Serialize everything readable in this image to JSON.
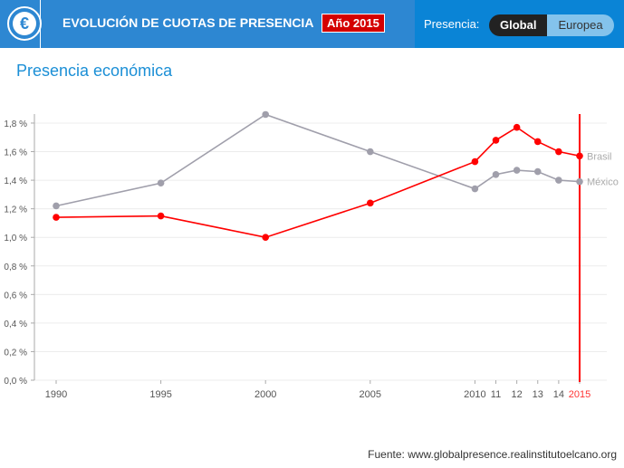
{
  "header": {
    "title": "EVOLUCIÓN DE CUOTAS DE PRESENCIA",
    "year_badge": "Año 2015",
    "logo_symbol": "€",
    "presence_label": "Presencia:",
    "toggle": {
      "global": "Global",
      "europea": "Europea",
      "selected": "Global"
    }
  },
  "subtitle": "Presencia económica",
  "source": "Fuente: www.globalpresence.realinstitutoelcano.org",
  "colors": {
    "brasil": "#ff0000",
    "mexico": "#a09fab",
    "header": "#2d87d2"
  },
  "chart_data": {
    "type": "line",
    "title": "Presencia económica",
    "x": [
      1990,
      1995,
      2000,
      2005,
      2010,
      2011,
      2012,
      2013,
      2014,
      2015
    ],
    "x_tick_labels": [
      "1990",
      "1995",
      "2000",
      "2005",
      "2010",
      "11",
      "12",
      "13",
      "14",
      "2015"
    ],
    "y_tick_labels": [
      "0,0 %",
      "0,2 %",
      "0,4 %",
      "0,6 %",
      "0,8 %",
      "1,0 %",
      "1,2 %",
      "1,4 %",
      "1,6 %",
      "1,8 %"
    ],
    "ylim": [
      0,
      1.8
    ],
    "ylabel": "",
    "xlabel": "",
    "grid": true,
    "highlight_year": 2015,
    "series": [
      {
        "name": "Brasil",
        "values": [
          1.14,
          1.15,
          1.0,
          1.24,
          1.53,
          1.68,
          1.77,
          1.67,
          1.6,
          1.57
        ]
      },
      {
        "name": "México",
        "values": [
          1.22,
          1.38,
          1.86,
          1.6,
          1.34,
          1.44,
          1.47,
          1.46,
          1.4,
          1.39
        ]
      }
    ]
  }
}
